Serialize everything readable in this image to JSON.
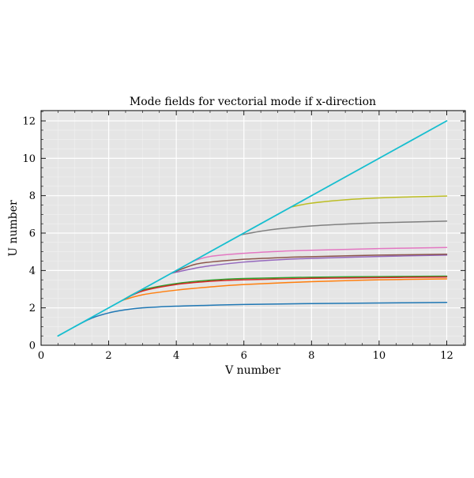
{
  "chart_data": {
    "type": "line",
    "title": "Mode fields for vectorial mode if x-direction",
    "xlabel": "V number",
    "ylabel": "U number",
    "xlim": [
      0,
      12.55
    ],
    "ylim": [
      0,
      12.55
    ],
    "xticks": [
      0,
      2,
      4,
      6,
      8,
      10,
      12
    ],
    "yticks": [
      0,
      2,
      4,
      6,
      8,
      10,
      12
    ],
    "grid": true,
    "background": "#e5e5e5",
    "series": [
      {
        "color": "#1f77b4",
        "x": [
          1.0,
          1.5,
          2.0,
          2.5,
          3.0,
          4.0,
          5.0,
          6.0,
          8.0,
          10.0,
          12.0
        ],
        "y": [
          1.0,
          1.45,
          1.73,
          1.9,
          2.0,
          2.09,
          2.14,
          2.18,
          2.23,
          2.26,
          2.29
        ]
      },
      {
        "color": "#ff7f0e",
        "x": [
          2.4,
          3.0,
          4.0,
          5.0,
          6.0,
          8.0,
          10.0,
          12.0
        ],
        "y": [
          2.4,
          2.7,
          2.95,
          3.12,
          3.25,
          3.4,
          3.5,
          3.55
        ]
      },
      {
        "color": "#2ca02c",
        "x": [
          2.4,
          3.0,
          4.0,
          5.0,
          6.0,
          8.0,
          10.0,
          12.0
        ],
        "y": [
          2.4,
          2.95,
          3.3,
          3.48,
          3.57,
          3.64,
          3.67,
          3.7
        ]
      },
      {
        "color": "#d62728",
        "x": [
          2.4,
          3.0,
          4.0,
          5.0,
          6.0,
          8.0,
          10.0,
          12.0
        ],
        "y": [
          2.4,
          2.9,
          3.25,
          3.42,
          3.5,
          3.58,
          3.62,
          3.65
        ]
      },
      {
        "color": "#9467bd",
        "x": [
          3.85,
          4.5,
          5.0,
          6.0,
          7.0,
          8.0,
          10.0,
          12.0
        ],
        "y": [
          3.85,
          4.1,
          4.25,
          4.45,
          4.57,
          4.65,
          4.75,
          4.82
        ]
      },
      {
        "color": "#8c564b",
        "x": [
          3.85,
          4.5,
          5.0,
          6.0,
          7.0,
          8.0,
          10.0,
          12.0
        ],
        "y": [
          3.85,
          4.3,
          4.45,
          4.6,
          4.68,
          4.74,
          4.82,
          4.87
        ]
      },
      {
        "color": "#e377c2",
        "x": [
          4.5,
          5.0,
          6.0,
          7.0,
          8.0,
          10.0,
          12.0
        ],
        "y": [
          4.5,
          4.75,
          4.92,
          5.02,
          5.08,
          5.17,
          5.23
        ]
      },
      {
        "color": "#7f7f7f",
        "x": [
          5.9,
          6.5,
          7.0,
          8.0,
          9.0,
          10.0,
          12.0
        ],
        "y": [
          5.9,
          6.1,
          6.22,
          6.38,
          6.48,
          6.55,
          6.64
        ]
      },
      {
        "color": "#bcbd22",
        "x": [
          7.4,
          8.0,
          9.0,
          10.0,
          11.0,
          12.0
        ],
        "y": [
          7.4,
          7.6,
          7.78,
          7.88,
          7.94,
          7.98
        ]
      },
      {
        "color": "#17becf",
        "x": [
          0.5,
          12.0
        ],
        "y": [
          0.5,
          12.0
        ]
      }
    ]
  }
}
